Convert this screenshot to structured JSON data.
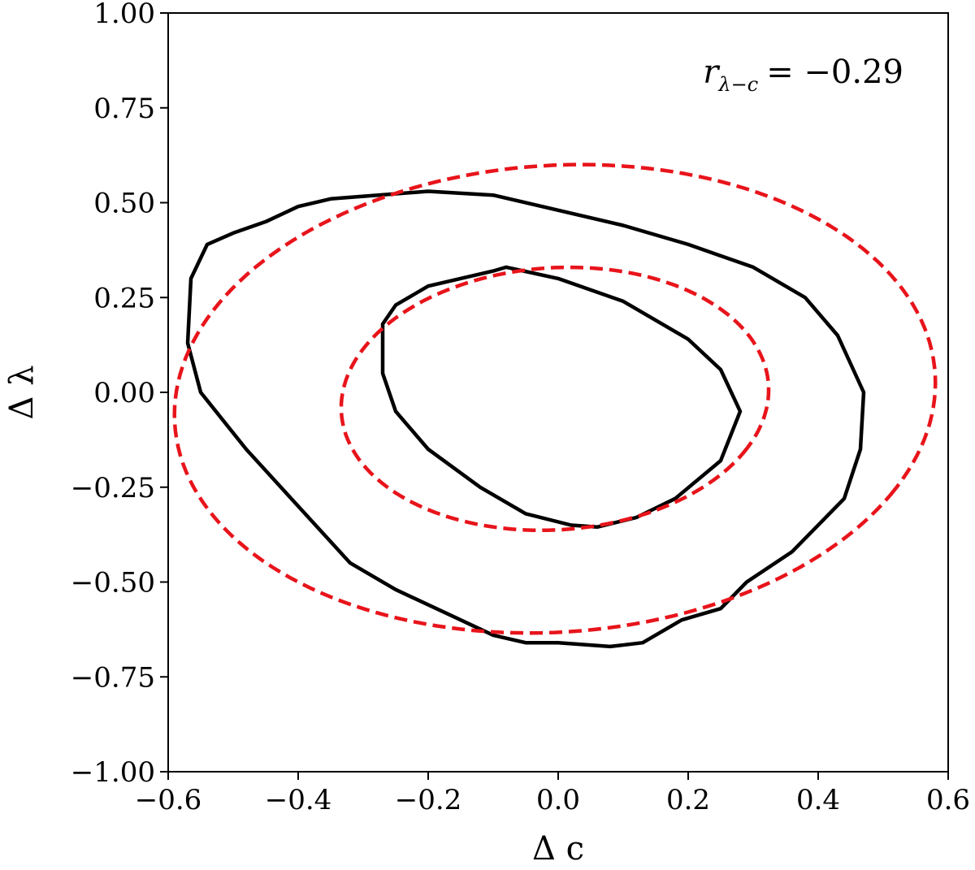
{
  "chart_data": {
    "type": "line",
    "xlabel": "Δ c",
    "ylabel": "Δ λ",
    "xlim": [
      -0.6,
      0.6
    ],
    "ylim": [
      -1.0,
      1.0
    ],
    "xticks": [
      -0.6,
      -0.4,
      -0.2,
      0.0,
      0.2,
      0.4,
      0.6
    ],
    "yticks": [
      -1.0,
      -0.75,
      -0.5,
      -0.25,
      0.0,
      0.25,
      0.5,
      0.75,
      1.0
    ],
    "xtick_labels": [
      "−0.6",
      "−0.4",
      "−0.2",
      "0.0",
      "0.2",
      "0.4",
      "0.6"
    ],
    "ytick_labels": [
      "−1.00",
      "−0.75",
      "−0.50",
      "−0.25",
      "0.00",
      "0.25",
      "0.50",
      "0.75",
      "1.00"
    ],
    "grid": false,
    "annotation": {
      "prefix": "r",
      "subscript": "λ−c",
      "text": "= −0.29",
      "placement": "top-right"
    },
    "series": [
      {
        "style": "solid",
        "color": "#000000",
        "points": [
          [
            -0.27,
            0.18
          ],
          [
            -0.25,
            0.23
          ],
          [
            -0.2,
            0.28
          ],
          [
            -0.1,
            0.32
          ],
          [
            -0.08,
            0.33
          ],
          [
            0.0,
            0.3
          ],
          [
            0.1,
            0.24
          ],
          [
            0.2,
            0.14
          ],
          [
            0.25,
            0.06
          ],
          [
            0.28,
            -0.05
          ],
          [
            0.25,
            -0.18
          ],
          [
            0.18,
            -0.28
          ],
          [
            0.12,
            -0.33
          ],
          [
            0.06,
            -0.355
          ],
          [
            0.02,
            -0.35
          ],
          [
            -0.05,
            -0.32
          ],
          [
            -0.12,
            -0.25
          ],
          [
            -0.2,
            -0.15
          ],
          [
            -0.25,
            -0.05
          ],
          [
            -0.27,
            0.05
          ],
          [
            -0.27,
            0.18
          ]
        ]
      },
      {
        "style": "solid",
        "color": "#000000",
        "points": [
          [
            -0.54,
            0.39
          ],
          [
            -0.5,
            0.42
          ],
          [
            -0.45,
            0.45
          ],
          [
            -0.4,
            0.49
          ],
          [
            -0.35,
            0.51
          ],
          [
            -0.2,
            0.53
          ],
          [
            -0.1,
            0.52
          ],
          [
            0.0,
            0.48
          ],
          [
            0.1,
            0.44
          ],
          [
            0.2,
            0.39
          ],
          [
            0.3,
            0.33
          ],
          [
            0.38,
            0.25
          ],
          [
            0.43,
            0.15
          ],
          [
            0.47,
            0.0
          ],
          [
            0.465,
            -0.15
          ],
          [
            0.44,
            -0.28
          ],
          [
            0.36,
            -0.42
          ],
          [
            0.29,
            -0.5
          ],
          [
            0.25,
            -0.57
          ],
          [
            0.19,
            -0.6
          ],
          [
            0.13,
            -0.66
          ],
          [
            0.08,
            -0.67
          ],
          [
            0.0,
            -0.66
          ],
          [
            -0.05,
            -0.66
          ],
          [
            -0.1,
            -0.64
          ],
          [
            -0.15,
            -0.6
          ],
          [
            -0.25,
            -0.52
          ],
          [
            -0.32,
            -0.45
          ],
          [
            -0.4,
            -0.3
          ],
          [
            -0.48,
            -0.15
          ],
          [
            -0.55,
            0.0
          ],
          [
            -0.57,
            0.13
          ],
          [
            -0.565,
            0.3
          ],
          [
            -0.54,
            0.39
          ]
        ]
      },
      {
        "style": "dashed",
        "color": "#e8141b",
        "ellipse": {
          "cx": -0.005,
          "cy": -0.017,
          "a": 0.323,
          "b": 0.352,
          "tilt_deg": -26
        }
      },
      {
        "style": "dashed",
        "color": "#e8141b",
        "ellipse": {
          "cx": -0.005,
          "cy": -0.017,
          "a": 0.575,
          "b": 0.627,
          "tilt_deg": -26
        }
      }
    ]
  }
}
